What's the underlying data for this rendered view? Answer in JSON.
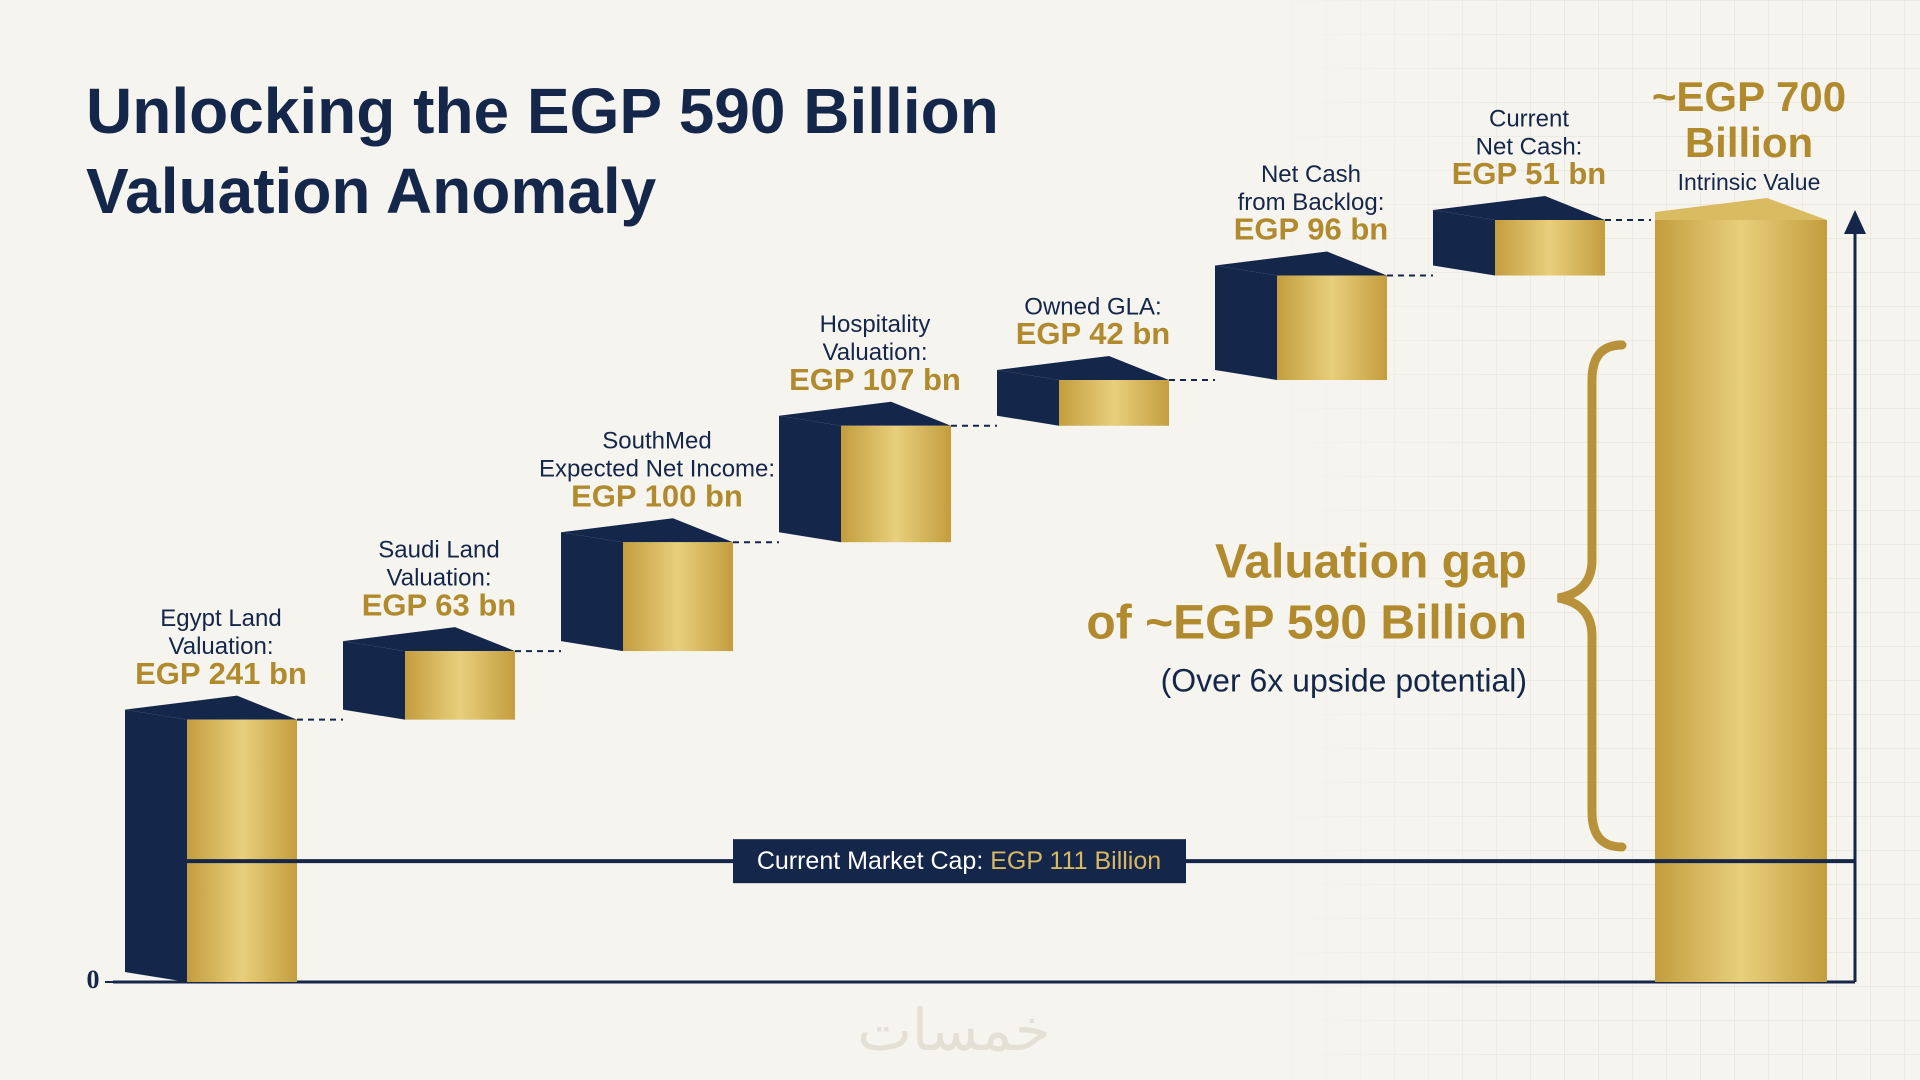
{
  "chart_data": {
    "type": "waterfall",
    "title": [
      "Unlocking the EGP 590 Billion",
      "Valuation Anomaly"
    ],
    "categories": [
      [
        "Egypt Land",
        "Valuation:"
      ],
      [
        "Saudi Land",
        "Valuation:"
      ],
      [
        "SouthMed",
        "Expected Net Income:"
      ],
      [
        "Hospitality",
        "Valuation:"
      ],
      [
        "Owned GLA:"
      ],
      [
        "Net Cash",
        "from Backlog:"
      ],
      [
        "Current",
        "Net Cash:"
      ]
    ],
    "values": [
      241,
      63,
      100,
      107,
      42,
      96,
      51
    ],
    "value_labels": [
      "EGP 241 bn",
      "EGP 63 bn",
      "EGP 100 bn",
      "EGP 107 bn",
      "EGP 42 bn",
      "EGP 96 bn",
      "EGP 51 bn"
    ],
    "total": {
      "value": 700,
      "label": [
        "~EGP 700",
        "Billion"
      ],
      "sublabel": "Intrinsic Value"
    },
    "reference_line": {
      "value": 111,
      "label": "Current Market Cap:",
      "value_label": "EGP 111 Billion"
    },
    "annotation": {
      "lines": [
        "Valuation gap",
        "of ~EGP 590 Billion"
      ],
      "note": "(Over 6x upside potential)"
    },
    "ylim": [
      0,
      700
    ],
    "yticks": [
      0
    ],
    "colors": {
      "face": "#c39d3e",
      "side": "#14264a"
    }
  },
  "watermark": "خمسات"
}
